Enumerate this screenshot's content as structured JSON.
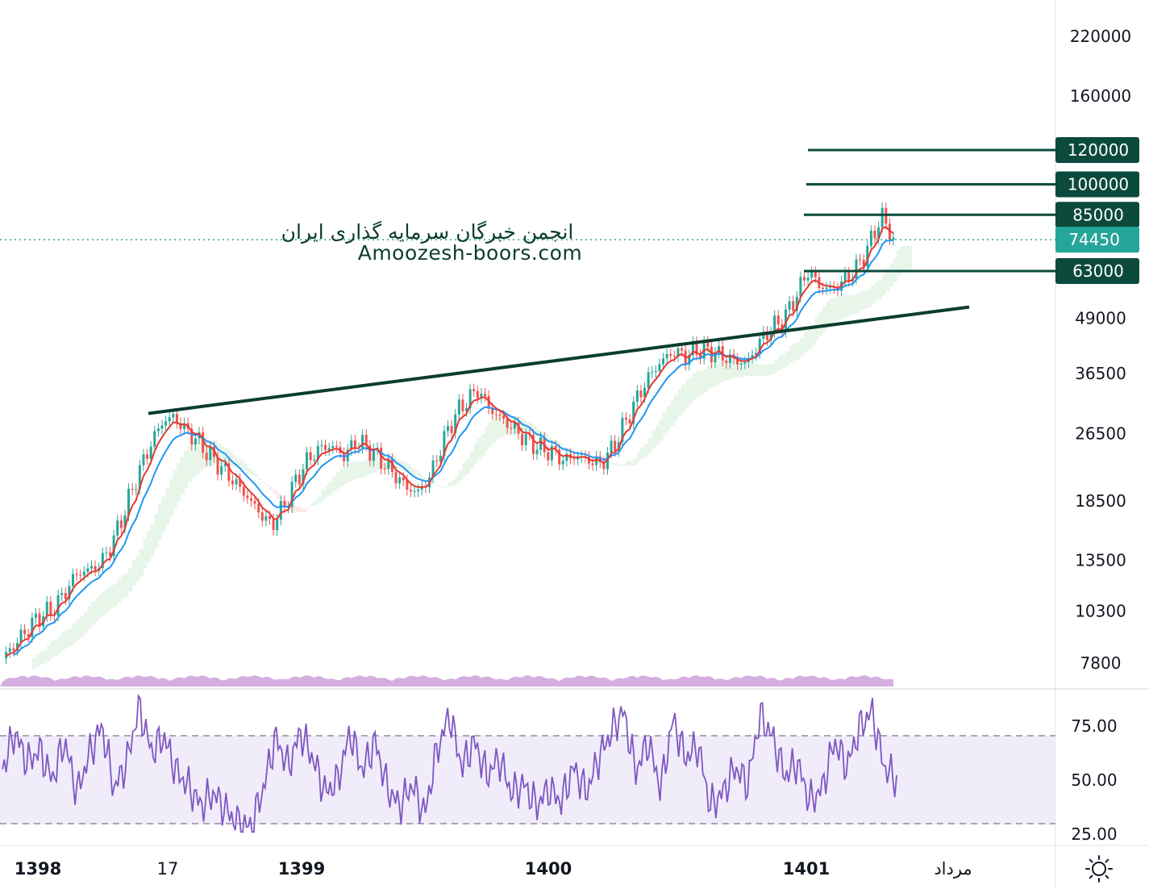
{
  "watermark": {
    "line1": "انجمن خبرگان سرمایه گذاری ایران",
    "line2": "Amoozesh-boors.com"
  },
  "colors": {
    "level_line": "#0b4a3c",
    "current_price_tag": "#26a69a",
    "candle_up": "#26a69a",
    "candle_down": "#ef5350",
    "ema_fast": "#e53935",
    "ema_slow": "#2196f3",
    "rsi_line": "#7e57c2",
    "rsi_band": "#f1ecfa",
    "cloud_green": "#e8f5e9",
    "cloud_red": "#fde8e8",
    "volume": "#b36bc7"
  },
  "settings_icon": "gear-sun-icon",
  "chart_data": [
    {
      "type": "line",
      "title": "",
      "y_scale": "log",
      "y_ticks": [
        "220000",
        "160000",
        "120000",
        "100000",
        "85000",
        "74450",
        "63000",
        "49000",
        "36500",
        "26500",
        "18500",
        "13500",
        "10300",
        "7800"
      ],
      "price_levels": [
        {
          "label": "120000",
          "value": 120000
        },
        {
          "label": "100000",
          "value": 100000
        },
        {
          "label": "85000",
          "value": 85000
        },
        {
          "label": "63000",
          "value": 63000
        }
      ],
      "current_price": {
        "label": "74450",
        "value": 74450
      },
      "trendline": {
        "from": {
          "x": "1398/17",
          "y": 29500
        },
        "to": {
          "x": "1401 مرداد",
          "y": 52000
        }
      },
      "x_ticks": [
        {
          "label": "1398",
          "bold": true
        },
        {
          "label": "17",
          "bold": false
        },
        {
          "label": "1399",
          "bold": true
        },
        {
          "label": "1400",
          "bold": true
        },
        {
          "label": "1401",
          "bold": true
        },
        {
          "label": "مرداد",
          "bold": false
        }
      ],
      "series": [
        {
          "values": [
            8000,
            8600,
            9300,
            10000,
            10300,
            11200,
            12500,
            12800,
            13200,
            14800,
            17500,
            21000,
            24500,
            28000,
            29000,
            27000,
            25500,
            23500,
            22000,
            20500,
            19000,
            17500,
            16200,
            17800,
            20500,
            23000,
            24500,
            24800,
            23500,
            25500,
            24500,
            23000,
            21500,
            20000,
            19300,
            21000,
            25000,
            29000,
            31500,
            33500,
            30000,
            28500,
            27000,
            25500,
            24500,
            24000,
            23000,
            23500,
            23000,
            22500,
            24500,
            28000,
            32000,
            36000,
            39000,
            41000,
            40000,
            41500,
            41000,
            40000,
            39000,
            38500,
            43000,
            46500,
            48500,
            55000,
            63000,
            58000,
            57000,
            60000,
            64000,
            72000,
            85000,
            74450
          ]
        }
      ]
    },
    {
      "type": "line",
      "title": "",
      "y_ticks": [
        "75.00",
        "50.00",
        "25.00"
      ],
      "band": [
        30,
        70
      ],
      "series": [
        {
          "values": [
            55,
            72,
            58,
            64,
            50,
            68,
            44,
            62,
            75,
            46,
            58,
            84,
            63,
            70,
            54,
            47,
            38,
            44,
            36,
            30,
            28,
            46,
            70,
            56,
            72,
            60,
            44,
            50,
            72,
            54,
            68,
            46,
            38,
            48,
            34,
            64,
            80,
            56,
            68,
            52,
            60,
            44,
            48,
            38,
            46,
            40,
            56,
            44,
            60,
            72,
            82,
            54,
            68,
            46,
            78,
            60,
            66,
            38,
            44,
            56,
            48,
            80,
            70,
            52,
            58,
            40,
            46,
            68,
            56,
            74,
            82,
            56,
            50
          ]
        }
      ]
    }
  ]
}
